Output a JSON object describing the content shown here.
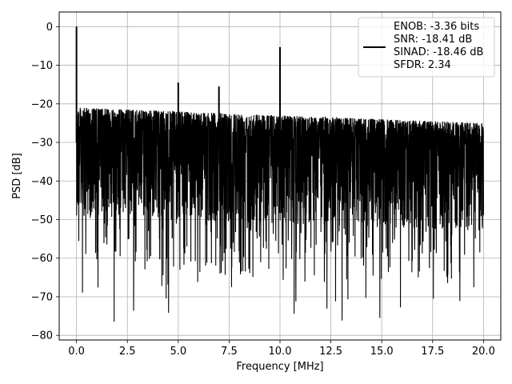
{
  "chart_data": {
    "type": "line",
    "xlabel": "Frequency [MHz]",
    "ylabel": "PSD [dB]",
    "xlim": [
      -0.85,
      20.85
    ],
    "ylim": [
      -81.2,
      3.8
    ],
    "xticks": [
      0.0,
      2.5,
      5.0,
      7.5,
      10.0,
      12.5,
      15.0,
      17.5,
      20.0
    ],
    "xtick_labels": [
      "0.0",
      "2.5",
      "5.0",
      "7.5",
      "10.0",
      "12.5",
      "15.0",
      "17.5",
      "20.0"
    ],
    "yticks": [
      0,
      -10,
      -20,
      -30,
      -40,
      -50,
      -60,
      -70,
      -80
    ],
    "ytick_labels": [
      "0",
      "−10",
      "−20",
      "−30",
      "−40",
      "−50",
      "−60",
      "−70",
      "−80"
    ],
    "grid": true,
    "legend_position": "top-right",
    "series": [
      {
        "color": "#000000",
        "x_range": [
          0,
          20
        ],
        "noise_floor_start_db": -21,
        "noise_floor_end_db": -25,
        "noise_median_db": -35,
        "noise_min_db": -77,
        "peaks": [
          {
            "x": 0.0,
            "y": 0.0
          },
          {
            "x": 5.0,
            "y": -14.5
          },
          {
            "x": 7.0,
            "y": -15.5
          },
          {
            "x": 10.0,
            "y": -5.3
          }
        ]
      }
    ],
    "legend_lines": [
      "ENOB: -3.36 bits",
      "SNR: -18.41 dB",
      "SINAD: -18.46 dB",
      "SFDR: 2.34"
    ]
  }
}
